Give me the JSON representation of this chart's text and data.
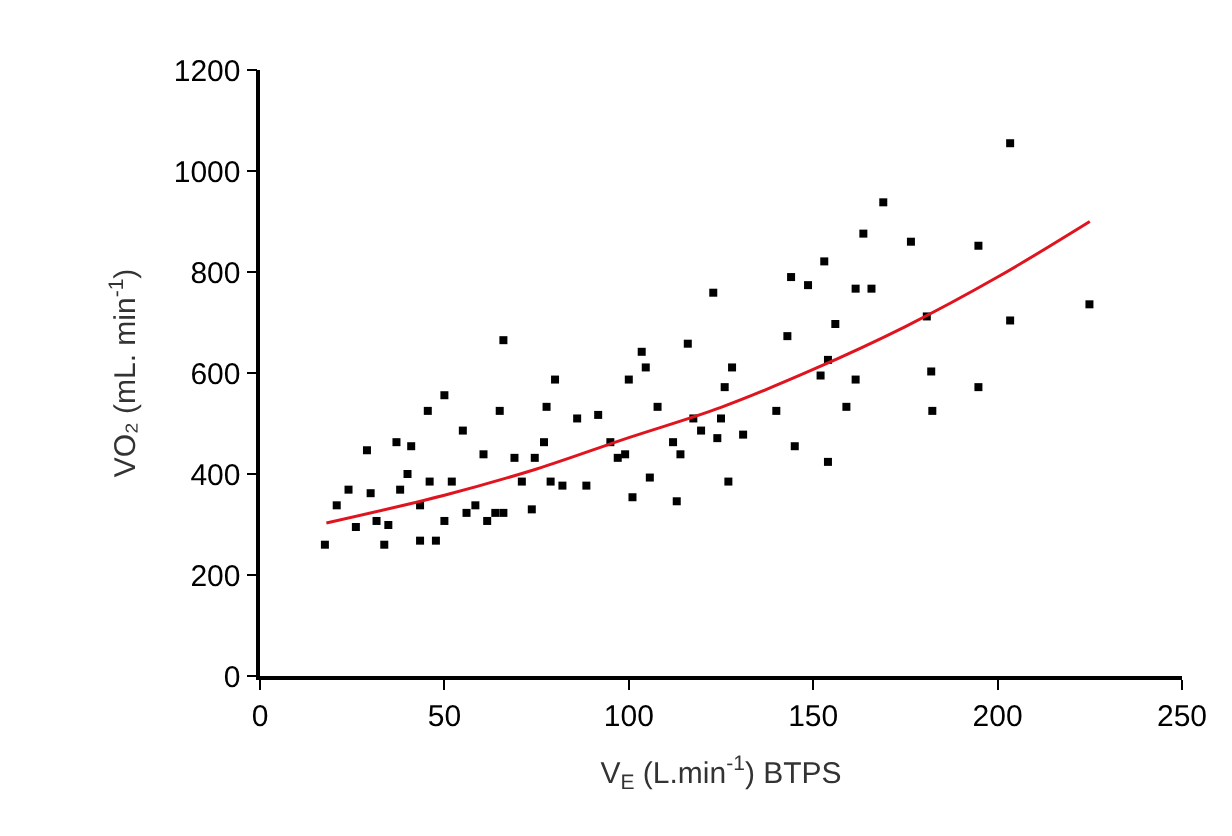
{
  "chart_data": {
    "type": "scatter",
    "xlabel": "V$_{E}$ (L.min$^{-1}$) BTPS",
    "ylabel": "VO₂ (mL. min$^{-1}$)",
    "xlim": [
      0,
      250
    ],
    "xticks": [
      0,
      50,
      100,
      150,
      200,
      250
    ],
    "ylim": [
      0,
      1200
    ],
    "yticks": [
      0,
      200,
      400,
      600,
      800,
      1000,
      1200
    ],
    "marker": "square",
    "series": [
      {
        "color": "#000000",
        "x": [
          17.6,
          20.8,
          24,
          26,
          29,
          30,
          31.6,
          33.7,
          34.8,
          37,
          38,
          40,
          41,
          43.4,
          43.4,
          45.5,
          46,
          47.7,
          50,
          50,
          52,
          55,
          56,
          58.4,
          60.6,
          61.6,
          63.8,
          66,
          65,
          66,
          69,
          71,
          73.7,
          74.5,
          77,
          77.7,
          80,
          78.8,
          82,
          86,
          88.5,
          91.7,
          95,
          97,
          99,
          100,
          101,
          103.5,
          104.6,
          105.7,
          107.8,
          112,
          113,
          114,
          116,
          117.5,
          119.6,
          122.9,
          124,
          125,
          126,
          127,
          128,
          131,
          140,
          143,
          144,
          145,
          148.6,
          153,
          152,
          154,
          154,
          156,
          159,
          161.5,
          163.6,
          161.5,
          165.8,
          169,
          176.5,
          180.8,
          182,
          182.3,
          194.8,
          194.8,
          203.4,
          203.4,
          224.9
        ],
        "values": [
          260,
          338,
          369,
          295,
          447,
          362,
          307,
          260,
          299,
          463,
          369,
          400,
          455,
          338,
          268,
          525,
          385,
          268,
          556,
          307,
          385,
          486,
          323,
          338,
          439,
          307,
          323,
          665,
          525,
          323,
          432,
          385,
          330,
          432,
          463,
          533,
          587,
          385,
          377,
          510,
          377,
          517,
          463,
          432,
          439,
          587,
          354,
          642,
          611,
          393,
          533,
          463,
          346,
          439,
          658,
          510,
          486,
          759,
          471,
          510,
          572,
          385,
          611,
          478,
          525,
          673,
          790,
          455,
          774,
          821,
          595,
          626,
          424,
          697,
          533,
          587,
          876,
          767,
          767,
          938,
          860,
          712,
          603,
          525,
          852,
          572,
          1055,
          704,
          736
        ]
      },
      {
        "type": "line",
        "color": "#e0141e",
        "marker": "none",
        "x": [
          18,
          50,
          75,
          100,
          125,
          150,
          175,
          200,
          225
        ],
        "values": [
          303,
          358,
          410,
          472,
          532,
          607,
          692,
          790,
          900
        ]
      }
    ]
  }
}
